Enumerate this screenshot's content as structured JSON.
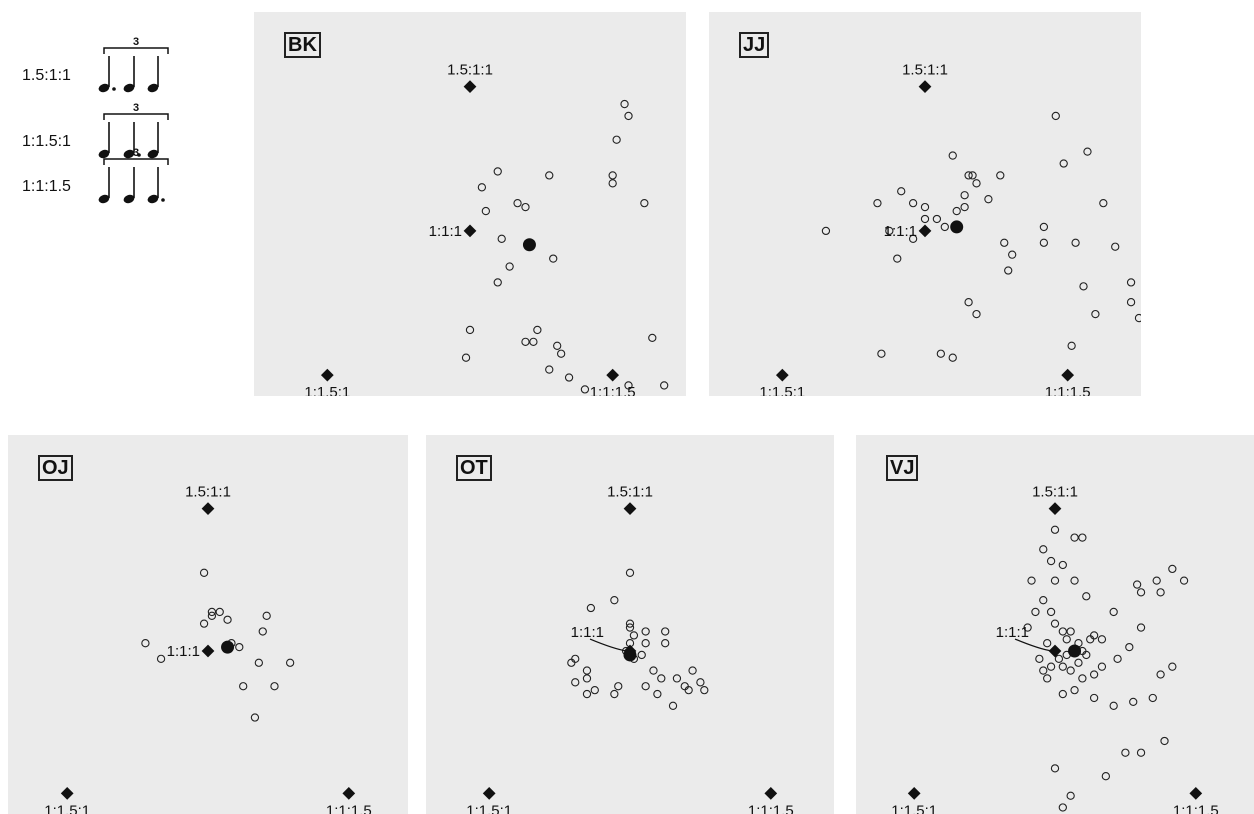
{
  "legend": {
    "rows": [
      {
        "ratio": "1.5:1:1",
        "tuplet": "3",
        "dotted_note": 1
      },
      {
        "ratio": "1:1.5:1",
        "tuplet": "3",
        "dotted_note": 2
      },
      {
        "ratio": "1:1:1.5",
        "tuplet": "3",
        "dotted_note": 3
      }
    ]
  },
  "chart_data": [
    {
      "type": "scatter",
      "panel_id": "BK",
      "references": [
        {
          "name": "1.5:1:1",
          "x": 0.5,
          "y": 0.864
        },
        {
          "name": "1:1:1",
          "x": 0.5,
          "y": 0.5
        },
        {
          "name": "1:1.5:1",
          "x": 0.14,
          "y": 0.136
        },
        {
          "name": "1:1:1.5",
          "x": 0.86,
          "y": 0.136
        }
      ],
      "mean": {
        "x": 0.65,
        "y": 0.465
      },
      "responses": [
        {
          "x": 0.7,
          "y": 0.15
        },
        {
          "x": 0.75,
          "y": 0.13
        },
        {
          "x": 0.73,
          "y": 0.19
        },
        {
          "x": 0.72,
          "y": 0.21
        },
        {
          "x": 0.66,
          "y": 0.22
        },
        {
          "x": 0.64,
          "y": 0.22
        },
        {
          "x": 0.67,
          "y": 0.25
        },
        {
          "x": 0.49,
          "y": 0.18
        },
        {
          "x": 0.5,
          "y": 0.25
        },
        {
          "x": 0.57,
          "y": 0.37
        },
        {
          "x": 0.6,
          "y": 0.41
        },
        {
          "x": 0.71,
          "y": 0.43
        },
        {
          "x": 0.58,
          "y": 0.48
        },
        {
          "x": 0.64,
          "y": 0.56
        },
        {
          "x": 0.53,
          "y": 0.61
        },
        {
          "x": 0.62,
          "y": 0.57
        },
        {
          "x": 0.54,
          "y": 0.55
        },
        {
          "x": 0.7,
          "y": 0.64
        },
        {
          "x": 0.57,
          "y": 0.65
        },
        {
          "x": 0.86,
          "y": 0.64
        },
        {
          "x": 0.86,
          "y": 0.62
        },
        {
          "x": 0.94,
          "y": 0.57
        },
        {
          "x": 0.87,
          "y": 0.73
        },
        {
          "x": 0.89,
          "y": 0.82
        },
        {
          "x": 0.9,
          "y": 0.79
        },
        {
          "x": 0.96,
          "y": 0.23
        },
        {
          "x": 0.99,
          "y": 0.11
        },
        {
          "x": 0.9,
          "y": 0.11
        },
        {
          "x": 0.79,
          "y": 0.1
        }
      ]
    },
    {
      "type": "scatter",
      "panel_id": "JJ",
      "references": [
        {
          "name": "1.5:1:1",
          "x": 0.5,
          "y": 0.864
        },
        {
          "name": "1:1:1",
          "x": 0.5,
          "y": 0.5
        },
        {
          "name": "1:1.5:1",
          "x": 0.14,
          "y": 0.136
        },
        {
          "name": "1:1:1.5",
          "x": 0.86,
          "y": 0.136
        }
      ],
      "mean": {
        "x": 0.58,
        "y": 0.51
      },
      "responses": [
        {
          "x": 0.25,
          "y": 0.5
        },
        {
          "x": 0.38,
          "y": 0.57
        },
        {
          "x": 0.44,
          "y": 0.6
        },
        {
          "x": 0.47,
          "y": 0.57
        },
        {
          "x": 0.5,
          "y": 0.56
        },
        {
          "x": 0.41,
          "y": 0.5
        },
        {
          "x": 0.43,
          "y": 0.43
        },
        {
          "x": 0.47,
          "y": 0.48
        },
        {
          "x": 0.5,
          "y": 0.53
        },
        {
          "x": 0.53,
          "y": 0.53
        },
        {
          "x": 0.55,
          "y": 0.51
        },
        {
          "x": 0.58,
          "y": 0.55
        },
        {
          "x": 0.6,
          "y": 0.56
        },
        {
          "x": 0.63,
          "y": 0.62
        },
        {
          "x": 0.6,
          "y": 0.59
        },
        {
          "x": 0.61,
          "y": 0.64
        },
        {
          "x": 0.62,
          "y": 0.64
        },
        {
          "x": 0.66,
          "y": 0.58
        },
        {
          "x": 0.69,
          "y": 0.64
        },
        {
          "x": 0.57,
          "y": 0.69
        },
        {
          "x": 0.72,
          "y": 0.44
        },
        {
          "x": 0.71,
          "y": 0.4
        },
        {
          "x": 0.7,
          "y": 0.47
        },
        {
          "x": 0.8,
          "y": 0.47
        },
        {
          "x": 0.8,
          "y": 0.51
        },
        {
          "x": 0.85,
          "y": 0.67
        },
        {
          "x": 0.88,
          "y": 0.47
        },
        {
          "x": 0.9,
          "y": 0.36
        },
        {
          "x": 0.91,
          "y": 0.7
        },
        {
          "x": 0.83,
          "y": 0.79
        },
        {
          "x": 0.95,
          "y": 0.57
        },
        {
          "x": 0.98,
          "y": 0.46
        },
        {
          "x": 0.87,
          "y": 0.21
        },
        {
          "x": 0.93,
          "y": 0.29
        },
        {
          "x": 1.02,
          "y": 0.32
        },
        {
          "x": 1.04,
          "y": 0.28
        },
        {
          "x": 1.02,
          "y": 0.37
        },
        {
          "x": 0.63,
          "y": 0.29
        },
        {
          "x": 0.61,
          "y": 0.32
        },
        {
          "x": 0.57,
          "y": 0.18
        },
        {
          "x": 0.39,
          "y": 0.19
        },
        {
          "x": 0.54,
          "y": 0.19
        },
        {
          "x": 1.18,
          "y": 0.4
        }
      ]
    },
    {
      "type": "scatter",
      "panel_id": "OJ",
      "references": [
        {
          "name": "1.5:1:1",
          "x": 0.5,
          "y": 0.864
        },
        {
          "name": "1:1:1",
          "x": 0.5,
          "y": 0.5
        },
        {
          "name": "1:1.5:1",
          "x": 0.14,
          "y": 0.136
        },
        {
          "name": "1:1:1.5",
          "x": 0.86,
          "y": 0.136
        }
      ],
      "mean": {
        "x": 0.55,
        "y": 0.51
      },
      "responses": [
        {
          "x": 0.34,
          "y": 0.52
        },
        {
          "x": 0.38,
          "y": 0.48
        },
        {
          "x": 0.49,
          "y": 0.7
        },
        {
          "x": 0.49,
          "y": 0.57
        },
        {
          "x": 0.51,
          "y": 0.59
        },
        {
          "x": 0.53,
          "y": 0.6
        },
        {
          "x": 0.55,
          "y": 0.58
        },
        {
          "x": 0.56,
          "y": 0.52
        },
        {
          "x": 0.58,
          "y": 0.51
        },
        {
          "x": 0.59,
          "y": 0.41
        },
        {
          "x": 0.63,
          "y": 0.47
        },
        {
          "x": 0.64,
          "y": 0.55
        },
        {
          "x": 0.65,
          "y": 0.59
        },
        {
          "x": 0.71,
          "y": 0.47
        },
        {
          "x": 0.67,
          "y": 0.41
        },
        {
          "x": 0.62,
          "y": 0.33
        },
        {
          "x": 0.55,
          "y": 0.04
        },
        {
          "x": 0.51,
          "y": 0.6
        }
      ]
    },
    {
      "type": "scatter",
      "panel_id": "OT",
      "references": [
        {
          "name": "1.5:1:1",
          "x": 0.5,
          "y": 0.864
        },
        {
          "name": "1:1:1",
          "x": 0.5,
          "y": 0.5
        },
        {
          "name": "1:1.5:1",
          "x": 0.14,
          "y": 0.136
        },
        {
          "name": "1:1:1.5",
          "x": 0.86,
          "y": 0.136
        }
      ],
      "mean": {
        "x": 0.5,
        "y": 0.49
      },
      "responses": [
        {
          "x": 0.5,
          "y": 0.7
        },
        {
          "x": 0.46,
          "y": 0.63
        },
        {
          "x": 0.4,
          "y": 0.61
        },
        {
          "x": 0.5,
          "y": 0.57
        },
        {
          "x": 0.5,
          "y": 0.56
        },
        {
          "x": 0.51,
          "y": 0.54
        },
        {
          "x": 0.54,
          "y": 0.55
        },
        {
          "x": 0.5,
          "y": 0.52
        },
        {
          "x": 0.49,
          "y": 0.5
        },
        {
          "x": 0.51,
          "y": 0.48
        },
        {
          "x": 0.53,
          "y": 0.49
        },
        {
          "x": 0.54,
          "y": 0.52
        },
        {
          "x": 0.59,
          "y": 0.55
        },
        {
          "x": 0.59,
          "y": 0.52
        },
        {
          "x": 0.56,
          "y": 0.45
        },
        {
          "x": 0.58,
          "y": 0.43
        },
        {
          "x": 0.54,
          "y": 0.41
        },
        {
          "x": 0.47,
          "y": 0.41
        },
        {
          "x": 0.46,
          "y": 0.39
        },
        {
          "x": 0.41,
          "y": 0.4
        },
        {
          "x": 0.39,
          "y": 0.43
        },
        {
          "x": 0.39,
          "y": 0.45
        },
        {
          "x": 0.36,
          "y": 0.48
        },
        {
          "x": 0.35,
          "y": 0.47
        },
        {
          "x": 0.36,
          "y": 0.42
        },
        {
          "x": 0.39,
          "y": 0.39
        },
        {
          "x": 0.62,
          "y": 0.43
        },
        {
          "x": 0.64,
          "y": 0.41
        },
        {
          "x": 0.65,
          "y": 0.4
        },
        {
          "x": 0.68,
          "y": 0.42
        },
        {
          "x": 0.69,
          "y": 0.4
        },
        {
          "x": 0.66,
          "y": 0.45
        },
        {
          "x": 0.61,
          "y": 0.36
        },
        {
          "x": 0.57,
          "y": 0.39
        }
      ]
    },
    {
      "type": "scatter",
      "panel_id": "VJ",
      "references": [
        {
          "name": "1.5:1:1",
          "x": 0.5,
          "y": 0.864
        },
        {
          "name": "1:1:1",
          "x": 0.5,
          "y": 0.5
        },
        {
          "name": "1:1.5:1",
          "x": 0.14,
          "y": 0.136
        },
        {
          "name": "1:1:1.5",
          "x": 0.86,
          "y": 0.136
        }
      ],
      "mean": {
        "x": 0.55,
        "y": 0.5
      },
      "responses": [
        {
          "x": 0.47,
          "y": 0.63
        },
        {
          "x": 0.49,
          "y": 0.6
        },
        {
          "x": 0.5,
          "y": 0.57
        },
        {
          "x": 0.52,
          "y": 0.55
        },
        {
          "x": 0.54,
          "y": 0.55
        },
        {
          "x": 0.53,
          "y": 0.53
        },
        {
          "x": 0.56,
          "y": 0.52
        },
        {
          "x": 0.57,
          "y": 0.5
        },
        {
          "x": 0.55,
          "y": 0.5
        },
        {
          "x": 0.53,
          "y": 0.49
        },
        {
          "x": 0.51,
          "y": 0.48
        },
        {
          "x": 0.48,
          "y": 0.52
        },
        {
          "x": 0.46,
          "y": 0.48
        },
        {
          "x": 0.47,
          "y": 0.45
        },
        {
          "x": 0.48,
          "y": 0.43
        },
        {
          "x": 0.49,
          "y": 0.46
        },
        {
          "x": 0.52,
          "y": 0.46
        },
        {
          "x": 0.54,
          "y": 0.45
        },
        {
          "x": 0.56,
          "y": 0.47
        },
        {
          "x": 0.58,
          "y": 0.49
        },
        {
          "x": 0.59,
          "y": 0.53
        },
        {
          "x": 0.6,
          "y": 0.54
        },
        {
          "x": 0.62,
          "y": 0.53
        },
        {
          "x": 0.65,
          "y": 0.6
        },
        {
          "x": 0.58,
          "y": 0.64
        },
        {
          "x": 0.55,
          "y": 0.68
        },
        {
          "x": 0.52,
          "y": 0.72
        },
        {
          "x": 0.5,
          "y": 0.68
        },
        {
          "x": 0.44,
          "y": 0.68
        },
        {
          "x": 0.45,
          "y": 0.6
        },
        {
          "x": 0.43,
          "y": 0.56
        },
        {
          "x": 0.49,
          "y": 0.73
        },
        {
          "x": 0.47,
          "y": 0.76
        },
        {
          "x": 0.55,
          "y": 0.79
        },
        {
          "x": 0.57,
          "y": 0.79
        },
        {
          "x": 0.5,
          "y": 0.81
        },
        {
          "x": 0.71,
          "y": 0.67
        },
        {
          "x": 0.72,
          "y": 0.65
        },
        {
          "x": 0.76,
          "y": 0.68
        },
        {
          "x": 0.77,
          "y": 0.65
        },
        {
          "x": 0.8,
          "y": 0.71
        },
        {
          "x": 0.83,
          "y": 0.68
        },
        {
          "x": 0.72,
          "y": 0.56
        },
        {
          "x": 0.69,
          "y": 0.51
        },
        {
          "x": 0.66,
          "y": 0.48
        },
        {
          "x": 0.62,
          "y": 0.46
        },
        {
          "x": 0.6,
          "y": 0.44
        },
        {
          "x": 0.57,
          "y": 0.43
        },
        {
          "x": 0.55,
          "y": 0.4
        },
        {
          "x": 0.52,
          "y": 0.39
        },
        {
          "x": 0.6,
          "y": 0.38
        },
        {
          "x": 0.65,
          "y": 0.36
        },
        {
          "x": 0.7,
          "y": 0.37
        },
        {
          "x": 0.75,
          "y": 0.38
        },
        {
          "x": 0.77,
          "y": 0.44
        },
        {
          "x": 0.8,
          "y": 0.46
        },
        {
          "x": 0.78,
          "y": 0.27
        },
        {
          "x": 0.63,
          "y": 0.18
        },
        {
          "x": 0.68,
          "y": 0.24
        },
        {
          "x": 0.72,
          "y": 0.24
        },
        {
          "x": 0.52,
          "y": 0.1
        },
        {
          "x": 0.54,
          "y": 0.13
        },
        {
          "x": 0.5,
          "y": 0.2
        }
      ]
    }
  ]
}
